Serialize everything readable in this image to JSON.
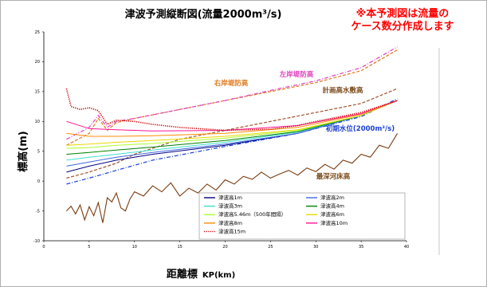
{
  "note_lines": [
    "※本予測図は流量の",
    "ケース数分作成します"
  ],
  "chart_data": {
    "type": "line",
    "title": "津波予測縦断図(流量2000m³/s)",
    "xlabel": "距離標",
    "xlabel_unit": "KP(km)",
    "ylabel": "標高(m)",
    "xlim": [
      0,
      40
    ],
    "ylim": [
      -10,
      25
    ],
    "xticks": [
      "0",
      "5",
      "10",
      "15",
      "20",
      "25",
      "30",
      "35",
      "40"
    ],
    "yticks": [
      "-10",
      "-5",
      "0",
      "5",
      "10",
      "15",
      "20",
      "25"
    ],
    "grid": false,
    "legend_position": "bottom-center",
    "annotations": [
      {
        "text": "右岸堤防高",
        "color": "#e07a1f"
      },
      {
        "text": "左岸堤防高",
        "color": "#e040c0"
      },
      {
        "text": "計画高水敷高",
        "color": "#7a4a1a"
      },
      {
        "text": "初期水位(2000m³/s)",
        "color": "#1a3fd6"
      },
      {
        "text": "最深河床高",
        "color": "#7a4a1a"
      }
    ],
    "series": [
      {
        "name": "津波高1m",
        "color": "#000080",
        "dash": "solid",
        "x": [
          2.5,
          5,
          8,
          12,
          20,
          28,
          35,
          39
        ],
        "y": [
          1.5,
          2.5,
          3.5,
          4.5,
          6,
          8,
          11,
          13.5
        ]
      },
      {
        "name": "津波高2m",
        "color": "#4169e1",
        "dash": "solid",
        "x": [
          2.5,
          5,
          8,
          12,
          20,
          28,
          35,
          39
        ],
        "y": [
          2.5,
          3.2,
          4,
          4.8,
          6.2,
          8,
          11,
          13.5
        ]
      },
      {
        "name": "津波高3m",
        "color": "#40e0d0",
        "dash": "solid",
        "x": [
          2.5,
          5,
          8,
          12,
          20,
          28,
          35,
          39
        ],
        "y": [
          3.5,
          4,
          4.5,
          5.2,
          6.5,
          8.2,
          11,
          13.5
        ]
      },
      {
        "name": "津波高4m",
        "color": "#008000",
        "dash": "solid",
        "x": [
          2.5,
          5,
          8,
          12,
          20,
          28,
          35,
          39
        ],
        "y": [
          4.5,
          4.8,
          5.2,
          5.7,
          6.8,
          8.3,
          11,
          13.5
        ]
      },
      {
        "name": "津波高5.46m（500年間隔）",
        "color": "#adff2f",
        "dash": "solid",
        "x": [
          2.5,
          5,
          8,
          12,
          20,
          28,
          35,
          39
        ],
        "y": [
          5.5,
          5.6,
          6,
          6.3,
          7.2,
          8.5,
          11,
          13.5
        ]
      },
      {
        "name": "津波高6m",
        "color": "#e8d800",
        "dash": "solid",
        "x": [
          2.5,
          5,
          8,
          12,
          20,
          28,
          35,
          39
        ],
        "y": [
          6,
          6.2,
          6.5,
          6.8,
          7.5,
          8.6,
          11,
          13.5
        ]
      },
      {
        "name": "津波高8m",
        "color": "#ff8c00",
        "dash": "solid",
        "x": [
          2.5,
          5,
          8,
          12,
          20,
          28,
          35,
          39
        ],
        "y": [
          8,
          7.5,
          7.5,
          7.6,
          8,
          9,
          11.2,
          13.5
        ]
      },
      {
        "name": "津波高10m",
        "color": "#ff1493",
        "dash": "solid",
        "x": [
          2.5,
          5,
          8,
          12,
          20,
          28,
          35,
          39
        ],
        "y": [
          10,
          8.8,
          8.6,
          8.4,
          8.5,
          9.3,
          11.3,
          13.5
        ]
      },
      {
        "name": "津波高15m",
        "color": "#cc0000",
        "dash": "dotted",
        "x": [
          2.5,
          3,
          4,
          5,
          6,
          7,
          8,
          10,
          12,
          15,
          20,
          25,
          28,
          30,
          35,
          39
        ],
        "y": [
          15.5,
          12.5,
          12,
          12.3,
          11.8,
          9.5,
          10.2,
          10,
          9.5,
          9,
          8.5,
          8.7,
          9.3,
          10,
          11.5,
          13.5
        ]
      }
    ],
    "other_lines": [
      {
        "label": "右岸堤防高",
        "color": "#e07a1f",
        "dash": "dashed",
        "x": [
          2.5,
          5,
          6,
          7,
          8,
          10,
          15,
          20,
          25,
          30,
          35,
          39
        ],
        "y": [
          6,
          8,
          10.5,
          8.5,
          9.8,
          10.5,
          12,
          13.5,
          15,
          16.5,
          18.5,
          22
        ]
      },
      {
        "label": "左岸堤防高",
        "color": "#e040c0",
        "dash": "dashdot",
        "x": [
          2.5,
          5,
          6,
          7,
          8,
          10,
          15,
          20,
          25,
          30,
          35,
          39
        ],
        "y": [
          7,
          9,
          11,
          9,
          10,
          10.5,
          12,
          13.5,
          15.2,
          16.8,
          19,
          22.5
        ]
      },
      {
        "label": "計画高水敷高",
        "color": "#a0522d",
        "dash": "dashed",
        "x": [
          2.5,
          5,
          8,
          10,
          15,
          20,
          25,
          30,
          35,
          39
        ],
        "y": [
          0.5,
          1.5,
          3,
          4.5,
          7,
          8.5,
          10,
          11.5,
          13,
          15.5
        ]
      },
      {
        "label": "初期水位(2000m³/s)",
        "color": "#1a3fd6",
        "dash": "dashdot",
        "x": [
          2.5,
          5,
          8,
          12,
          20,
          28,
          35,
          39
        ],
        "y": [
          -0.5,
          0.5,
          1.8,
          3.5,
          5.8,
          8,
          10.8,
          13.8
        ]
      },
      {
        "label": "最深河床高",
        "color": "#7a3b10",
        "dash": "solid",
        "x": [
          2.5,
          3,
          3.5,
          4,
          4.5,
          5,
          5.5,
          6,
          6.5,
          7,
          7.5,
          8,
          8.5,
          9,
          9.5,
          10,
          11,
          12,
          13,
          14,
          15,
          16,
          17,
          18,
          19,
          20,
          21,
          22,
          23,
          24,
          25,
          26,
          27,
          28,
          29,
          30,
          31,
          32,
          33,
          34,
          35,
          36,
          37,
          38,
          39
        ],
        "y": [
          -5,
          -4.2,
          -5.5,
          -4,
          -6.5,
          -4.3,
          -5.8,
          -3.6,
          -7,
          -2.8,
          -3.5,
          -2,
          -4.5,
          -5,
          -3,
          -1.8,
          -2.5,
          -0.8,
          -1.8,
          -0.3,
          -2.5,
          -1.2,
          -2,
          -0.5,
          -1.5,
          0.2,
          -0.5,
          0.8,
          0.3,
          1.5,
          0.5,
          1.2,
          1.8,
          1,
          2.2,
          1.6,
          2.8,
          2,
          3.5,
          3,
          4.5,
          4,
          6,
          5.5,
          8
        ]
      }
    ]
  }
}
